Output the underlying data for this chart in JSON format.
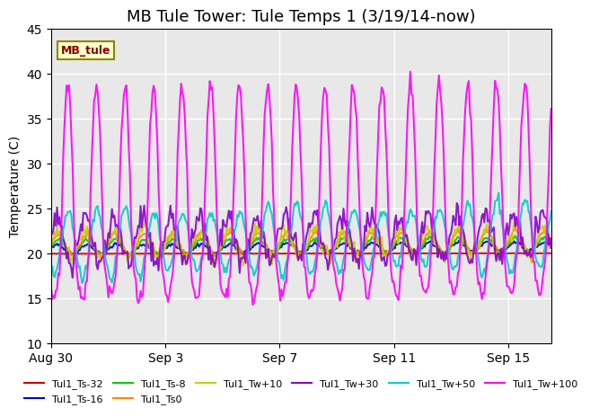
{
  "title": "MB Tule Tower: Tule Temps 1 (3/19/14-now)",
  "ylabel": "Temperature (C)",
  "xlabel": "",
  "ylim": [
    10,
    45
  ],
  "yticks": [
    10,
    15,
    20,
    25,
    30,
    35,
    40,
    45
  ],
  "xlim_days": [
    0,
    17.5
  ],
  "x_start_day": 0,
  "background_color": "#ffffff",
  "plot_bg_color": "#e8e8e8",
  "station_label": "MB_tule",
  "series": [
    {
      "name": "Tul1_Ts-32",
      "color": "#cc0000",
      "lw": 1.5
    },
    {
      "name": "Tul1_Ts-16",
      "color": "#0000cc",
      "lw": 1.5
    },
    {
      "name": "Tul1_Ts-8",
      "color": "#00cc00",
      "lw": 1.5
    },
    {
      "name": "Tul1_Ts0",
      "color": "#ff8800",
      "lw": 1.5
    },
    {
      "name": "Tul1_Tw+10",
      "color": "#cccc00",
      "lw": 1.5
    },
    {
      "name": "Tul1_Tw+30",
      "color": "#8800cc",
      "lw": 1.5
    },
    {
      "name": "Tul1_Tw+50",
      "color": "#00cccc",
      "lw": 1.5
    },
    {
      "name": "Tul1_Tw+100",
      "color": "#ff00ff",
      "lw": 1.5
    }
  ],
  "xtick_labels": [
    "Aug 30",
    "Sep 3",
    "Sep 7",
    "Sep 11",
    "Sep 15"
  ],
  "xtick_positions": [
    0,
    4,
    8,
    12,
    16
  ],
  "grid_color": "#ffffff",
  "title_fontsize": 13
}
